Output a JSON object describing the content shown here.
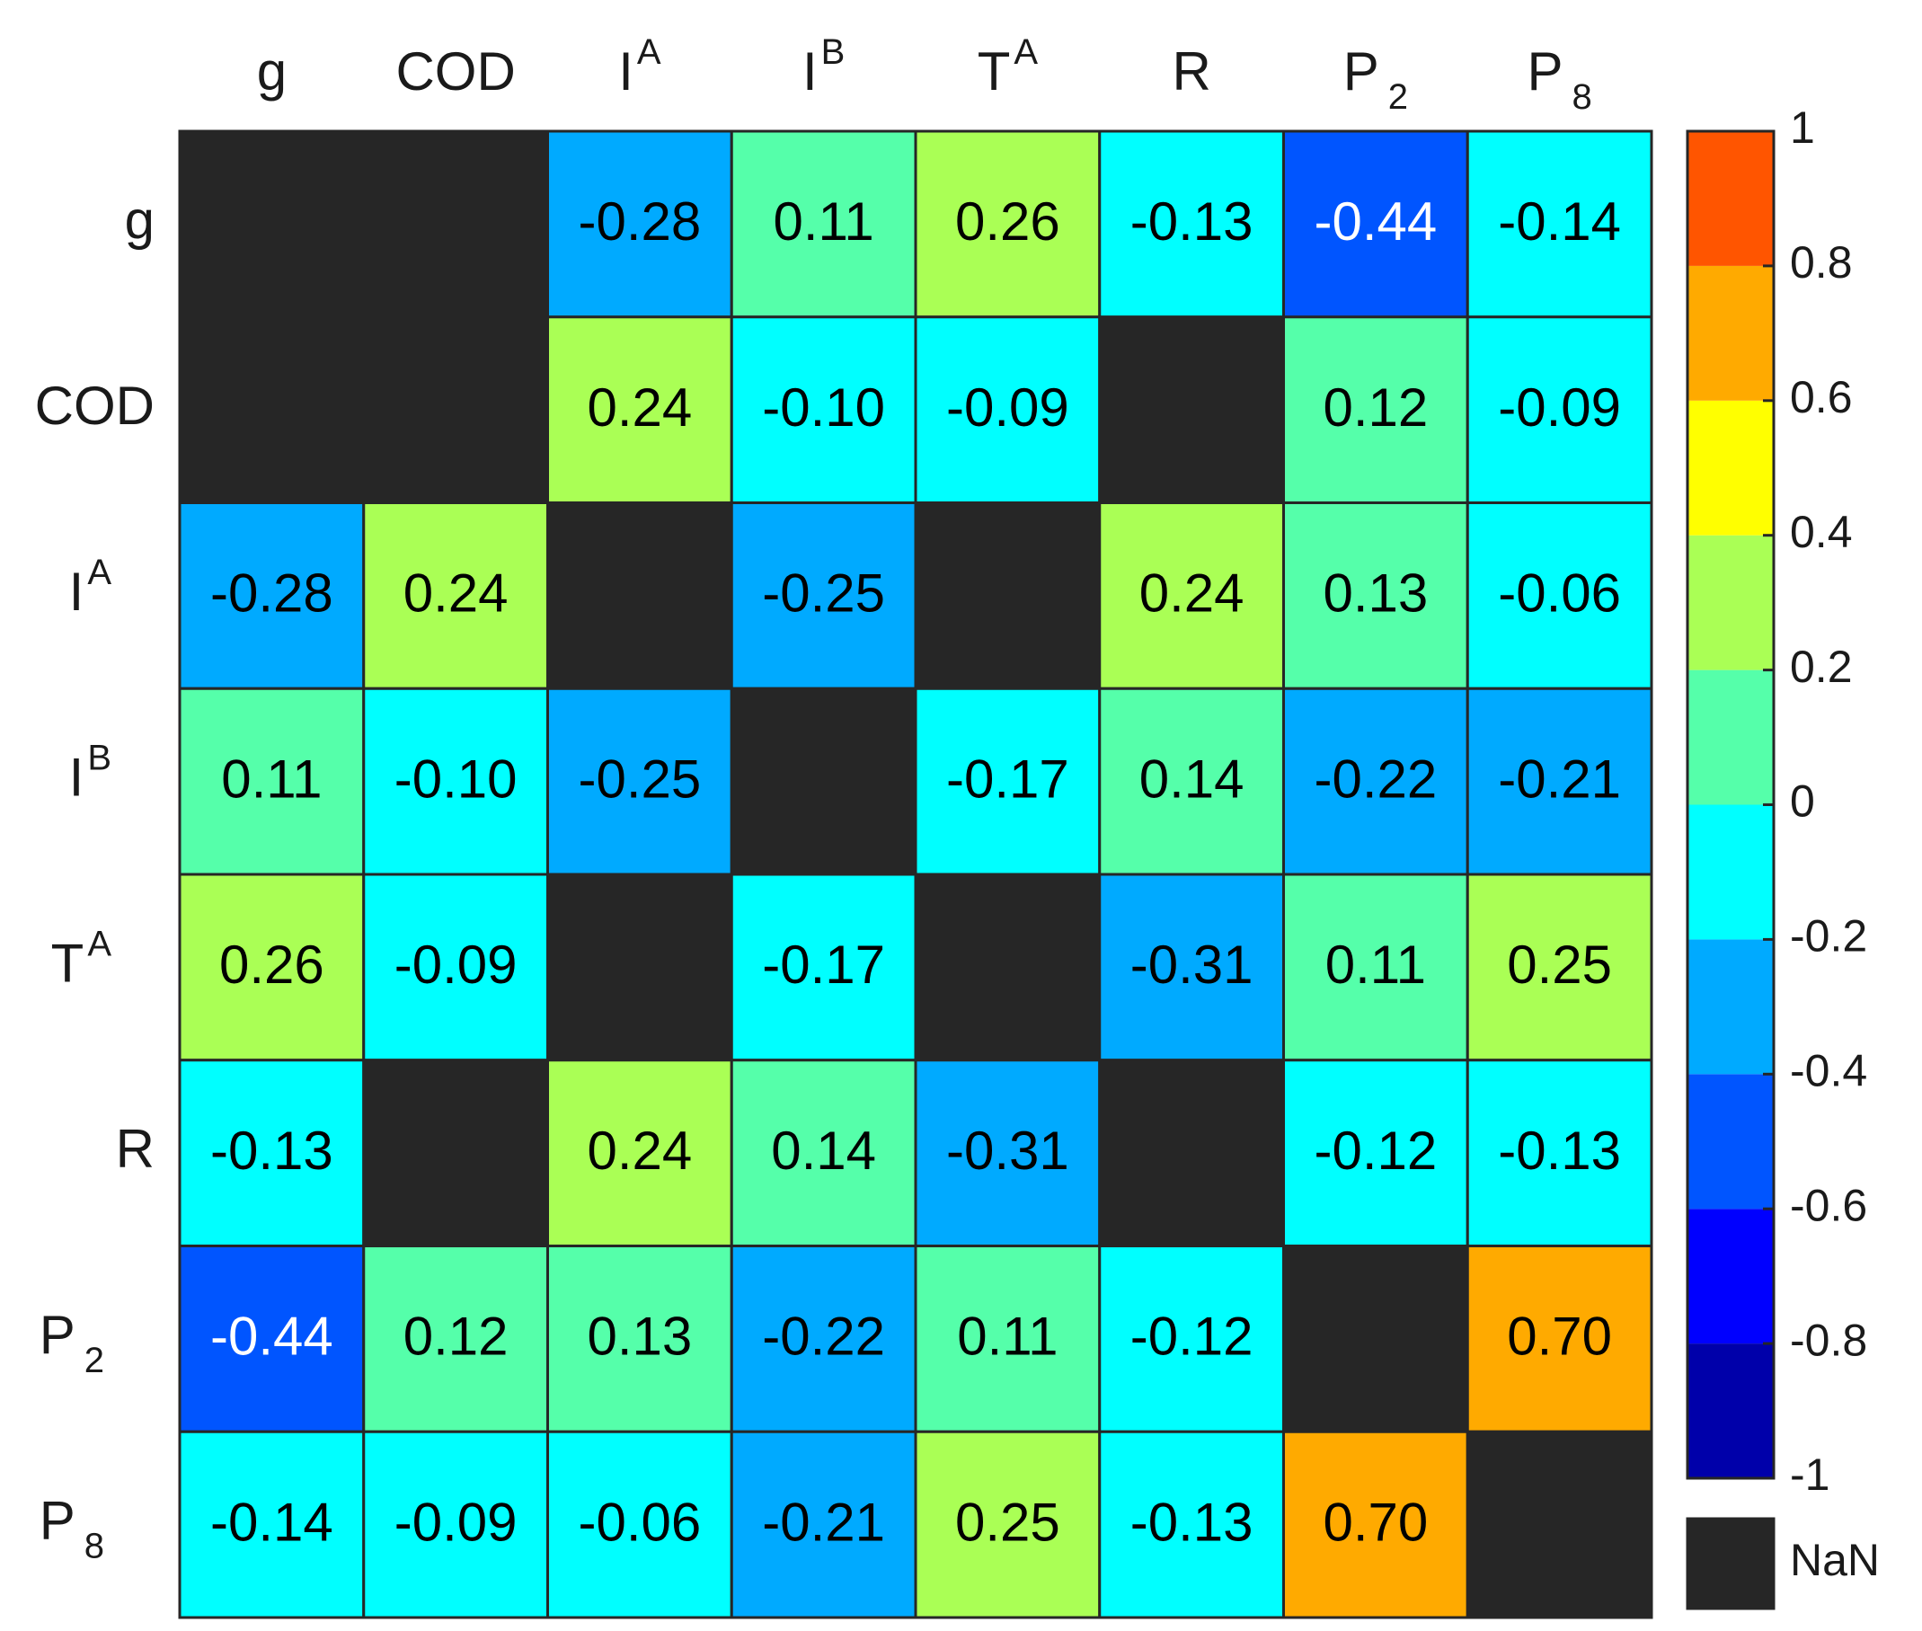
{
  "chart_data": {
    "type": "heatmap",
    "title": "",
    "xlabel": "",
    "ylabel": "",
    "row_labels": [
      {
        "base": "g",
        "sup": "",
        "sub": ""
      },
      {
        "base": "COD",
        "sup": "",
        "sub": ""
      },
      {
        "base": "I",
        "sup": "A",
        "sub": ""
      },
      {
        "base": "I",
        "sup": "B",
        "sub": ""
      },
      {
        "base": "T",
        "sup": "A",
        "sub": ""
      },
      {
        "base": "R",
        "sup": "",
        "sub": ""
      },
      {
        "base": "P",
        "sup": "",
        "sub": "2"
      },
      {
        "base": "P",
        "sup": "",
        "sub": "8"
      }
    ],
    "col_labels": [
      {
        "base": "g",
        "sup": "",
        "sub": ""
      },
      {
        "base": "COD",
        "sup": "",
        "sub": ""
      },
      {
        "base": "I",
        "sup": "A",
        "sub": ""
      },
      {
        "base": "I",
        "sup": "B",
        "sub": ""
      },
      {
        "base": "T",
        "sup": "A",
        "sub": ""
      },
      {
        "base": "R",
        "sup": "",
        "sub": ""
      },
      {
        "base": "P",
        "sup": "",
        "sub": "2"
      },
      {
        "base": "P",
        "sup": "",
        "sub": "8"
      }
    ],
    "values": [
      [
        null,
        null,
        -0.28,
        0.11,
        0.26,
        -0.13,
        -0.44,
        -0.14
      ],
      [
        null,
        null,
        0.24,
        -0.1,
        -0.09,
        null,
        0.12,
        -0.09
      ],
      [
        -0.28,
        0.24,
        null,
        -0.25,
        null,
        0.24,
        0.13,
        -0.06
      ],
      [
        0.11,
        -0.1,
        -0.25,
        null,
        -0.17,
        0.14,
        -0.22,
        -0.21
      ],
      [
        0.26,
        -0.09,
        null,
        -0.17,
        null,
        -0.31,
        0.11,
        0.25
      ],
      [
        -0.13,
        null,
        0.24,
        0.14,
        -0.31,
        null,
        -0.12,
        -0.13
      ],
      [
        -0.44,
        0.12,
        0.13,
        -0.22,
        0.11,
        -0.12,
        null,
        0.7
      ],
      [
        -0.14,
        -0.09,
        -0.06,
        -0.21,
        0.25,
        -0.13,
        0.7,
        null
      ]
    ],
    "value_format_decimals": 2,
    "colorbar": {
      "range": [
        -1,
        1
      ],
      "ticks": [
        "1",
        "0.8",
        "0.6",
        "0.4",
        "0.2",
        "0",
        "-0.2",
        "-0.4",
        "-0.6",
        "-0.8",
        "-1"
      ],
      "bins": [
        -1.0,
        -0.8,
        -0.6,
        -0.4,
        -0.2,
        0.0,
        0.2,
        0.4,
        0.6,
        0.8,
        1.0
      ],
      "colors": [
        "#0000AA",
        "#0000FF",
        "#0055FF",
        "#00AAFF",
        "#00FFFF",
        "#55FFAA",
        "#AAFF55",
        "#FFFF00",
        "#FFAA00",
        "#FF5500"
      ],
      "nan_color": "#262626",
      "nan_label": "NaN",
      "location": "right"
    },
    "grid": true,
    "text_colors": {
      "dark": "#000000",
      "light": "#ffffff"
    }
  }
}
